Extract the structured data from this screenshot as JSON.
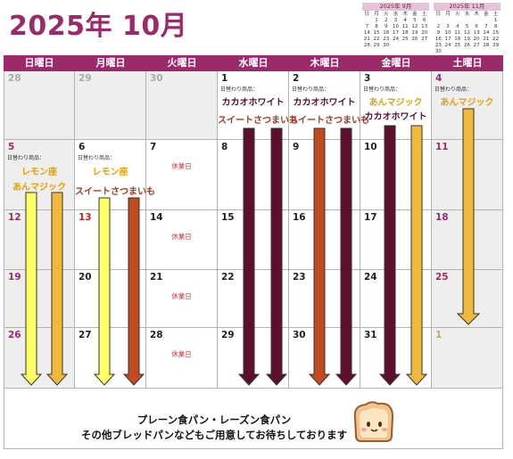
{
  "title": "2025年 10月",
  "mini_calendars": [
    {
      "title": "2025年 9月",
      "weekdays": [
        "日",
        "月",
        "火",
        "水",
        "木",
        "金",
        "土"
      ],
      "weeks": [
        [
          "",
          "1",
          "2",
          "3",
          "4",
          "5",
          "6"
        ],
        [
          "7",
          "8",
          "9",
          "10",
          "11",
          "12",
          "13"
        ],
        [
          "14",
          "15",
          "16",
          "17",
          "18",
          "19",
          "20"
        ],
        [
          "21",
          "22",
          "23",
          "24",
          "25",
          "26",
          "27"
        ],
        [
          "28",
          "29",
          "30",
          "",
          "",
          "",
          ""
        ]
      ]
    },
    {
      "title": "2025年 11月",
      "weekdays": [
        "日",
        "月",
        "火",
        "水",
        "木",
        "金",
        "土"
      ],
      "weeks": [
        [
          "",
          "",
          "",
          "",
          "",
          "",
          "1"
        ],
        [
          "2",
          "3",
          "4",
          "5",
          "6",
          "7",
          "8"
        ],
        [
          "9",
          "10",
          "11",
          "12",
          "13",
          "14",
          "15"
        ],
        [
          "16",
          "17",
          "18",
          "19",
          "20",
          "21",
          "22"
        ],
        [
          "23",
          "24",
          "25",
          "26",
          "27",
          "28",
          "29"
        ],
        [
          "30",
          "",
          "",
          "",
          "",
          "",
          ""
        ]
      ]
    }
  ],
  "weekdays": [
    "日曜日",
    "月曜日",
    "火曜日",
    "水曜日",
    "木曜日",
    "金曜日",
    "土曜日"
  ],
  "daily_label": "日替わり商品：",
  "closed_label": "休業日",
  "weeks": [
    [
      "28",
      "29",
      "30",
      "1",
      "2",
      "3",
      "4"
    ],
    [
      "5",
      "6",
      "7",
      "8",
      "9",
      "10",
      "11"
    ],
    [
      "12",
      "13",
      "14",
      "15",
      "16",
      "17",
      "18"
    ],
    [
      "19",
      "20",
      "21",
      "22",
      "23",
      "24",
      "25"
    ],
    [
      "26",
      "27",
      "28",
      "29",
      "30",
      "31",
      "1"
    ]
  ],
  "items": {
    "d1": [
      "カカオホワイト",
      "スイートさつまいも"
    ],
    "d2": [
      "カカオホワイト",
      "スイートさつまいも"
    ],
    "d3": [
      "あんマジック",
      "カカオホワイト"
    ],
    "d4": [
      "あんマジック"
    ],
    "d5": [
      "レモン座",
      "あんマジック"
    ],
    "d6": [
      "レモン座",
      "スイートさつまいも"
    ]
  },
  "arrow_colors": {
    "yellow": "#ffff66",
    "orange": "#f0b83c",
    "brown": "#c24a1e",
    "dark": "#5e0f2e"
  },
  "footer": {
    "line1": "プレーン食パン・レーズン食パン",
    "line2": "その他ブレッドパンなどもご用意してお待ちしております"
  }
}
